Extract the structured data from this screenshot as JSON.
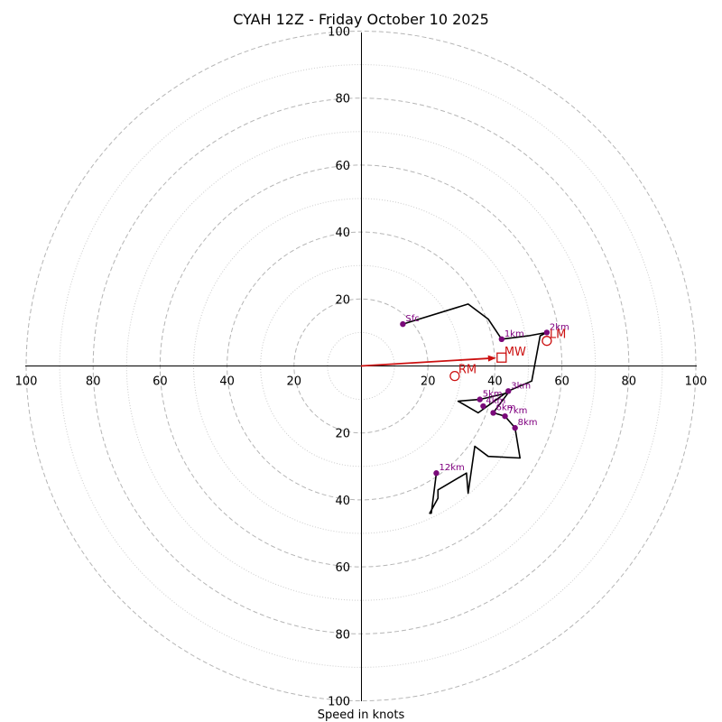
{
  "chart_data": {
    "type": "hodograph",
    "title": "CYAH 12Z - Friday October 10 2025",
    "xlabel": "Speed in knots",
    "range": [
      -100,
      100
    ],
    "rings_major": [
      20,
      40,
      60,
      80,
      100
    ],
    "rings_minor": [
      10,
      30,
      50,
      70,
      90
    ],
    "tick_labels": {
      "left": [
        "100",
        "80",
        "60",
        "40",
        "20"
      ],
      "right": [
        "20",
        "40",
        "60",
        "80",
        "100"
      ],
      "top": [
        "20",
        "40",
        "60",
        "80",
        "100"
      ],
      "bottom": [
        "20",
        "40",
        "60",
        "80",
        "100"
      ]
    },
    "hodograph": {
      "color": "#000000",
      "points": [
        [
          12.5,
          12.5
        ],
        [
          32,
          18.5
        ],
        [
          38,
          14
        ],
        [
          42,
          8
        ],
        [
          50,
          9
        ],
        [
          55.5,
          10
        ],
        [
          53.5,
          9
        ],
        [
          51,
          -4.5
        ],
        [
          44,
          -7.5
        ],
        [
          35,
          -14
        ],
        [
          29,
          -10.5
        ],
        [
          35.5,
          -10
        ],
        [
          44,
          -8
        ],
        [
          39.5,
          -14
        ],
        [
          43,
          -15
        ],
        [
          46,
          -18.5
        ],
        [
          47.5,
          -27.5
        ],
        [
          38,
          -27
        ],
        [
          34,
          -24
        ],
        [
          32,
          -38
        ],
        [
          31.5,
          -32
        ],
        [
          23,
          -37
        ],
        [
          23,
          -39.5
        ],
        [
          20.5,
          -44
        ],
        [
          21,
          -44
        ],
        [
          22.5,
          -32
        ]
      ]
    },
    "height_markers": [
      {
        "label": "Sfc",
        "u": 12.5,
        "v": 12.5
      },
      {
        "label": "1km",
        "u": 42,
        "v": 8
      },
      {
        "label": "2km",
        "u": 55.5,
        "v": 10
      },
      {
        "label": "3km",
        "u": 44,
        "v": -7.5
      },
      {
        "label": "4km",
        "u": 36.5,
        "v": -12
      },
      {
        "label": "5km",
        "u": 35.5,
        "v": -10
      },
      {
        "label": "6km",
        "u": 39.5,
        "v": -14
      },
      {
        "label": "7km",
        "u": 43,
        "v": -15
      },
      {
        "label": "8km",
        "u": 46,
        "v": -18.5
      },
      {
        "label": "12km",
        "u": 22.5,
        "v": -32
      }
    ],
    "storm_motion": {
      "color": "#cc1111",
      "mean_wind": {
        "label": "MW",
        "u": 42,
        "v": 2.5
      },
      "right_mover": {
        "label": "RM",
        "u": 28,
        "v": -3
      },
      "left_mover": {
        "label": "LM",
        "u": 55.5,
        "v": 7.5
      }
    }
  }
}
